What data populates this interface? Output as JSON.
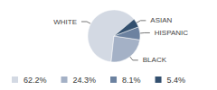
{
  "chart_data": {
    "type": "pie",
    "categories": [
      "WHITE",
      "BLACK",
      "HISPANIC",
      "ASIAN"
    ],
    "values": [
      62.2,
      24.3,
      8.1,
      5.4
    ],
    "value_labels": [
      "62.2%",
      "24.3%",
      "8.1%",
      "5.4%"
    ],
    "colors": [
      "#d3d9e3",
      "#a4b1c6",
      "#6c82a0",
      "#33506f"
    ],
    "legend": "bottom-left"
  }
}
